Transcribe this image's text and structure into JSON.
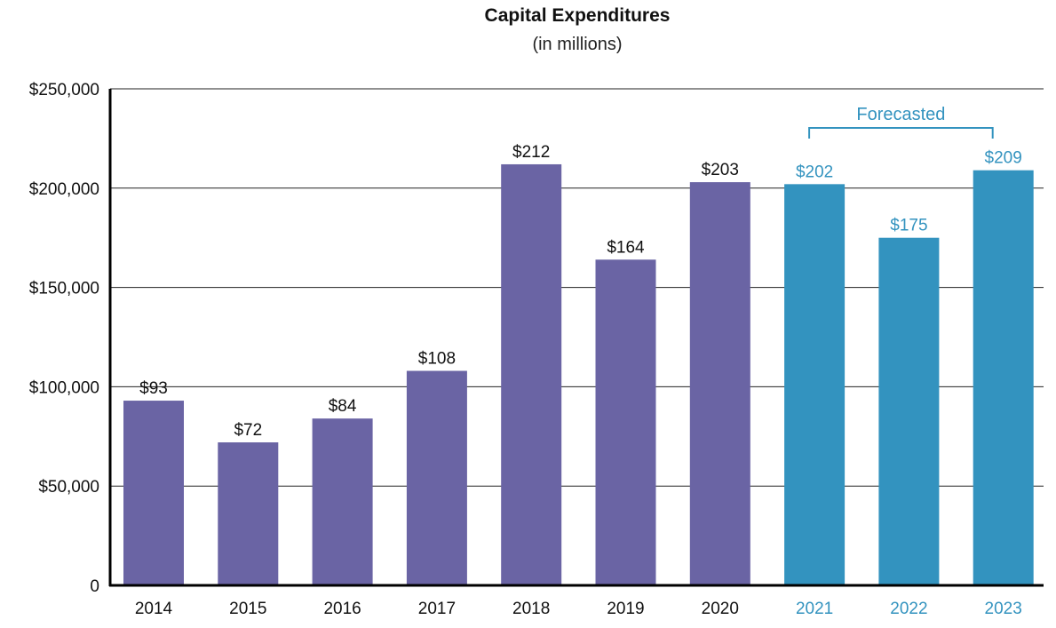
{
  "chart_data": {
    "type": "bar",
    "title": "Capital Expenditures",
    "subtitle": "(in millions)",
    "xlabel": "",
    "ylabel": "",
    "ylim": [
      0,
      250000
    ],
    "y_ticks": [
      {
        "value": 0,
        "label": "0"
      },
      {
        "value": 50000,
        "label": "$50,000"
      },
      {
        "value": 100000,
        "label": "$100,000"
      },
      {
        "value": 150000,
        "label": "$150,000"
      },
      {
        "value": 200000,
        "label": "$200,000"
      },
      {
        "value": 250000,
        "label": "$250,000"
      }
    ],
    "grid": true,
    "categories": [
      "2014",
      "2015",
      "2016",
      "2017",
      "2018",
      "2019",
      "2020",
      "2021",
      "2022",
      "2023"
    ],
    "values": [
      93000,
      72000,
      84000,
      108000,
      212000,
      164000,
      203000,
      202000,
      175000,
      209000
    ],
    "data_labels": [
      "$93",
      "$72",
      "$84",
      "$108",
      "$212",
      "$164",
      "$203",
      "$202",
      "$175",
      "$209"
    ],
    "forecasted": [
      false,
      false,
      false,
      false,
      false,
      false,
      false,
      true,
      true,
      true
    ],
    "forecast_annotation": "Forecasted",
    "colors": {
      "actual": "#6a64a4",
      "forecast": "#3393bf",
      "text": "#111111",
      "grid": "#222222",
      "axis": "#000000"
    }
  }
}
